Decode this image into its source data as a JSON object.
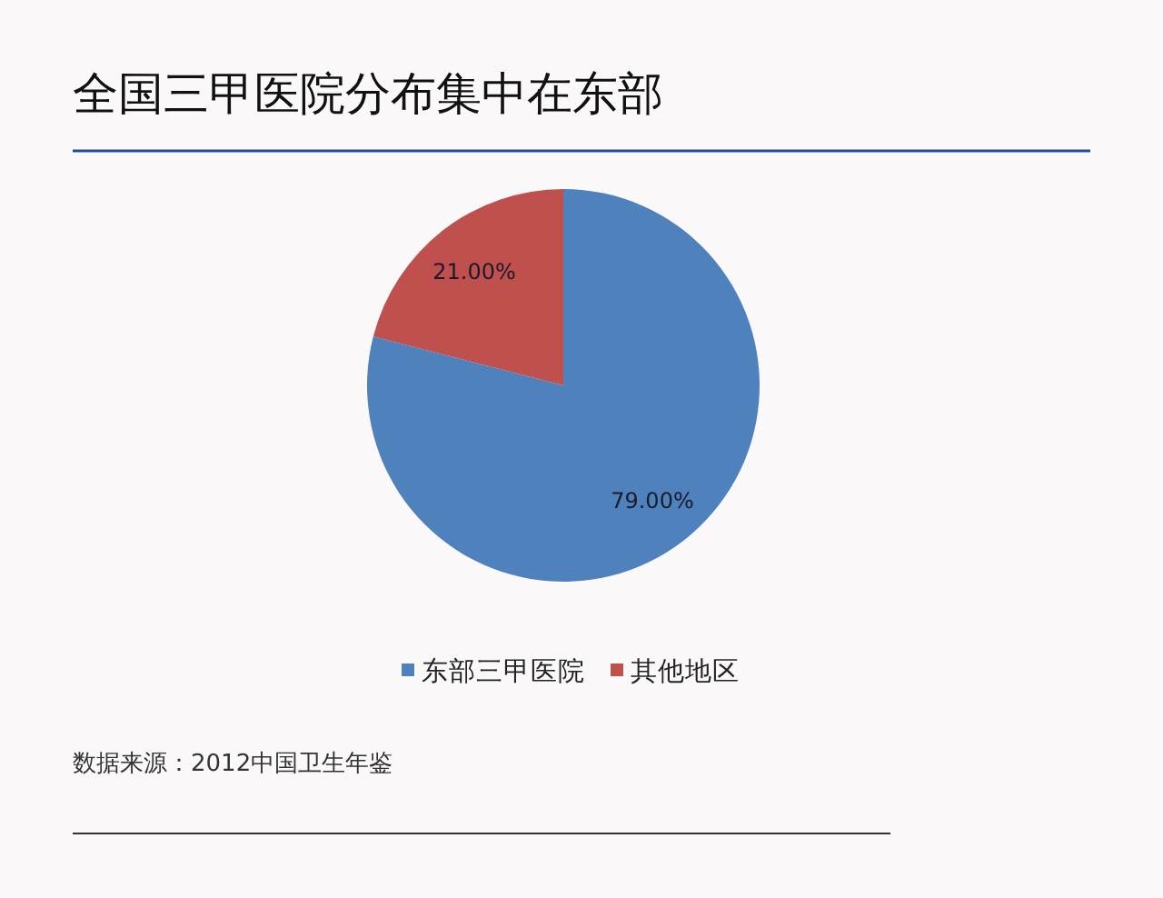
{
  "chart_data": {
    "type": "pie",
    "title": "全国三甲医院分布集中在东部",
    "categories": [
      "东部三甲医院",
      "其他地区"
    ],
    "values": [
      79,
      21
    ],
    "colors": [
      "#4f81bd",
      "#c0504d"
    ],
    "value_labels": [
      "79.00%",
      "21.00%"
    ],
    "legend": "bottom",
    "annotations": [
      "数据来源：2012中国卫生年鉴"
    ]
  }
}
